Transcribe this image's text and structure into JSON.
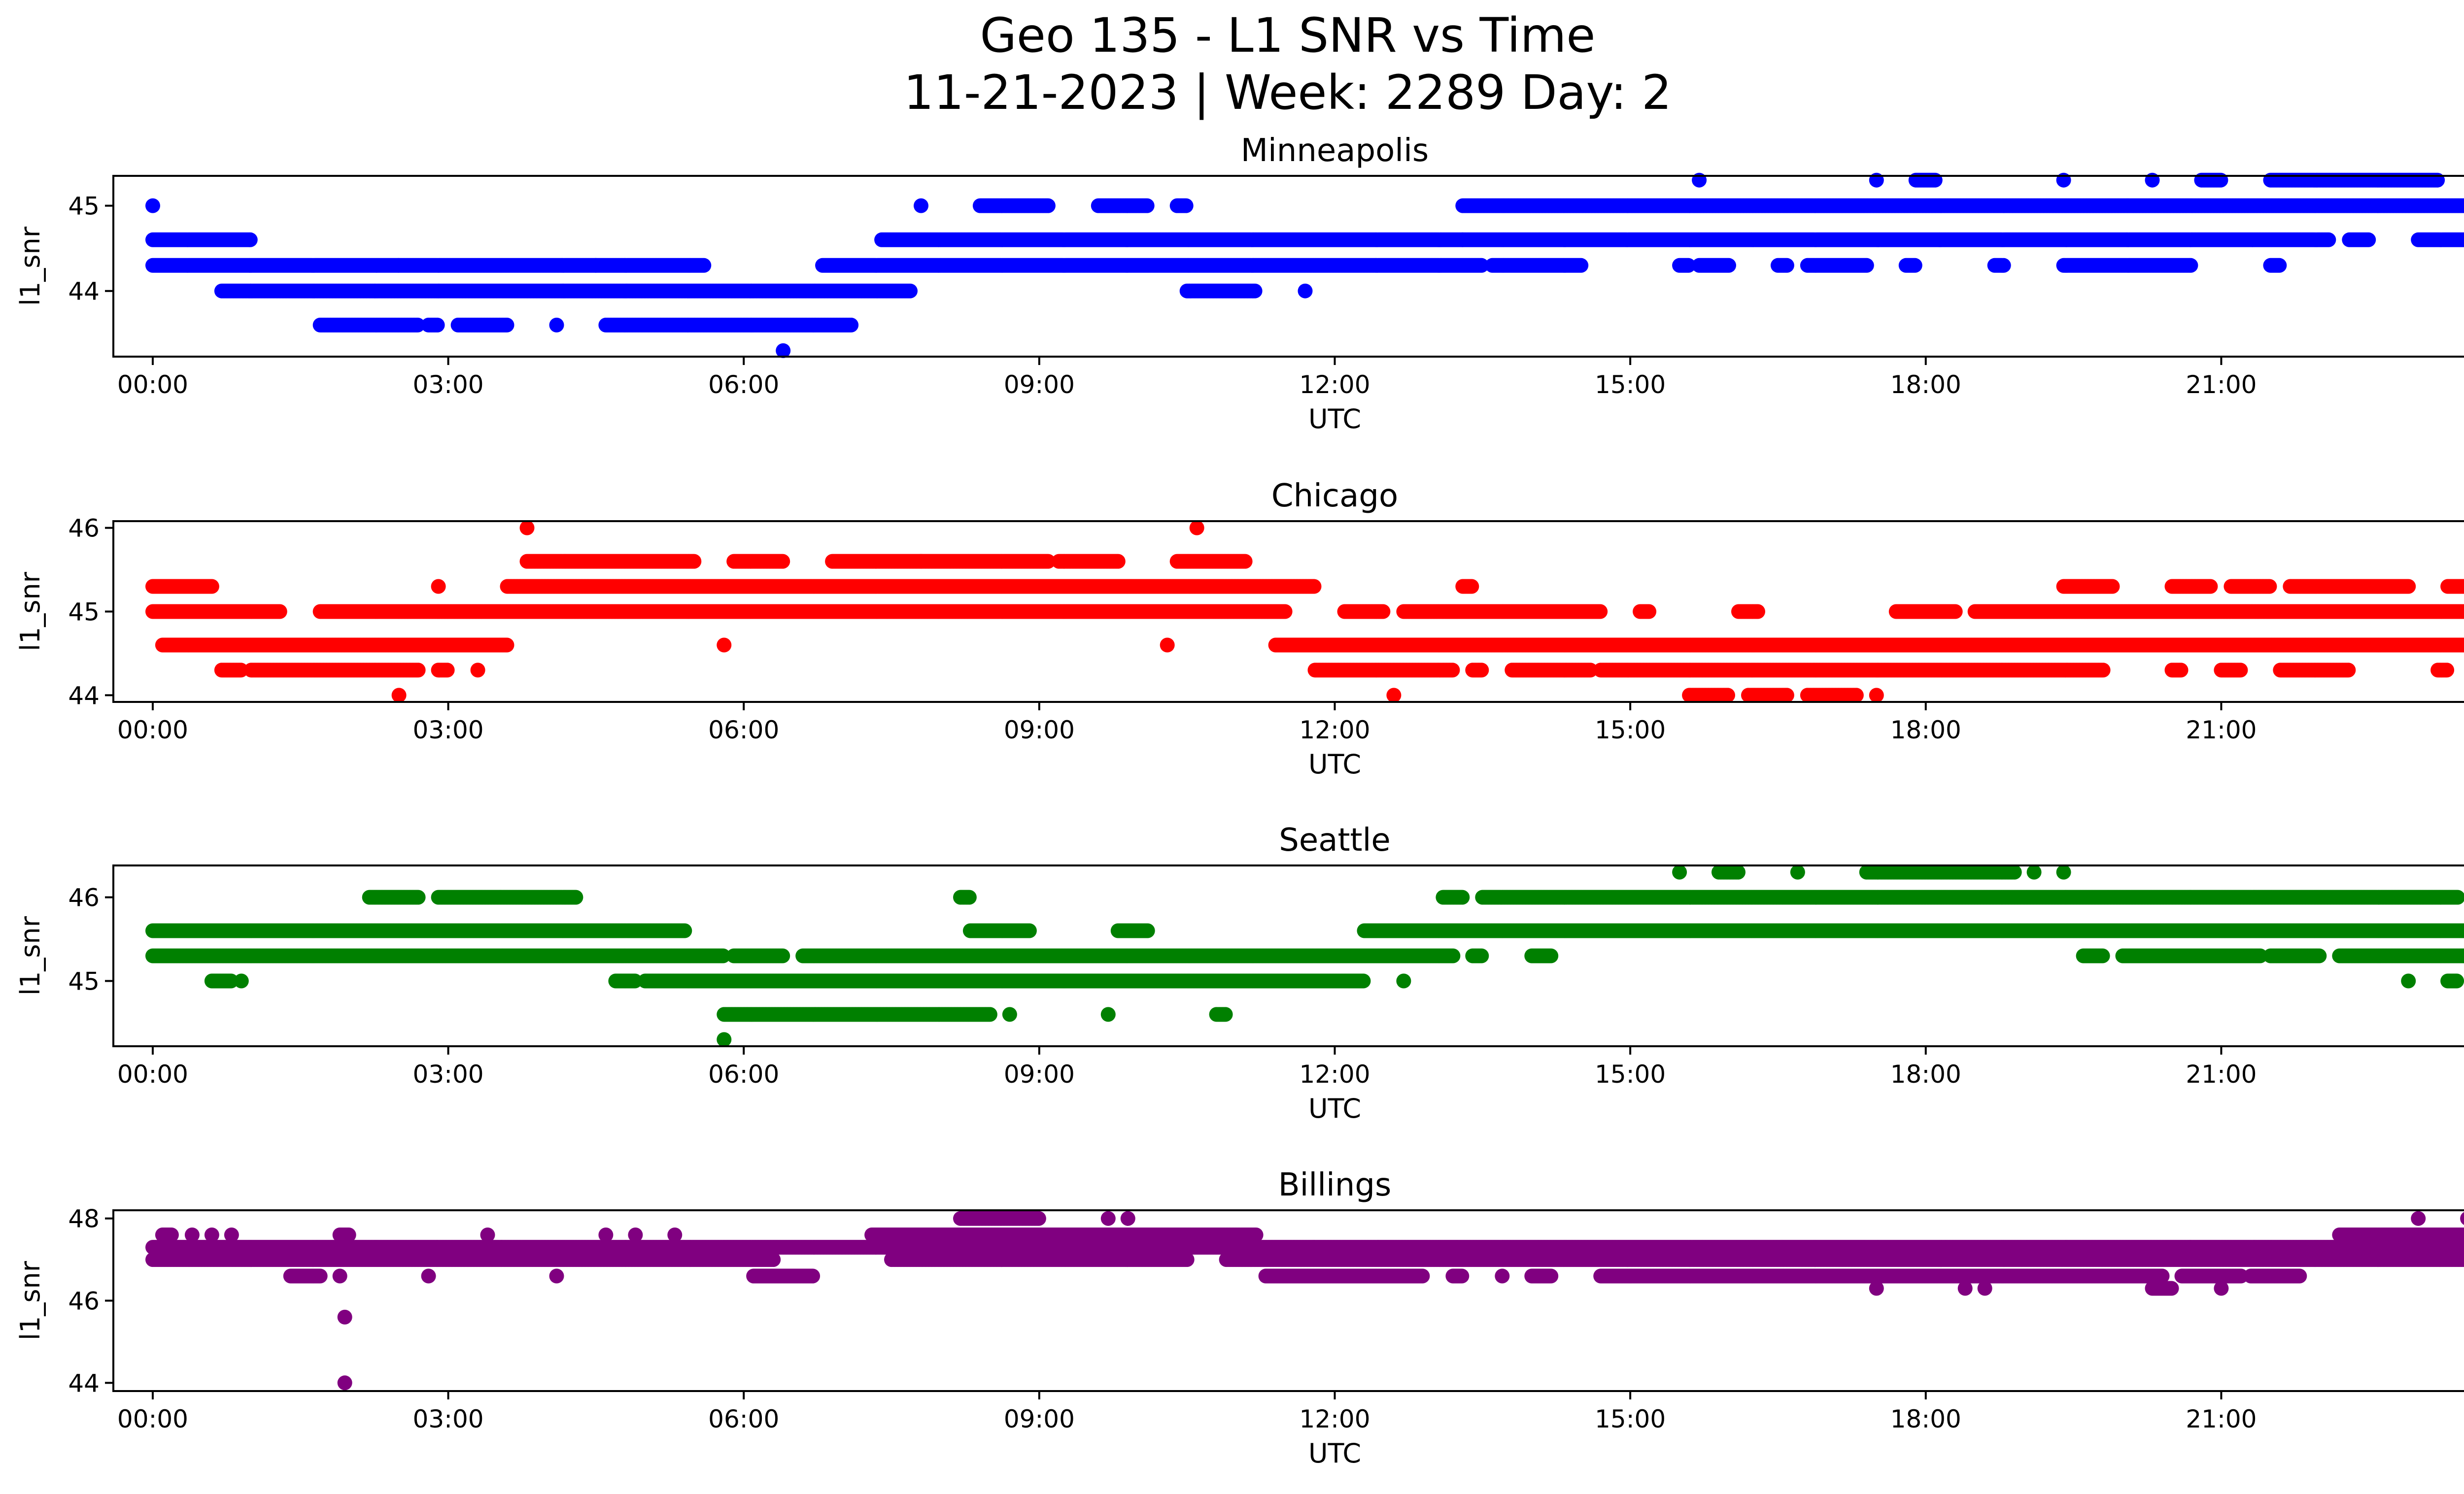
{
  "title": {
    "line1": "Geo 135 - L1 SNR vs Time",
    "line2": "11-21-2023 | Week: 2289 Day: 2"
  },
  "chart_data": [
    {
      "type": "scatter",
      "title": "Minneapolis",
      "xlabel": "UTC",
      "ylabel": "l1_snr",
      "color": "#0000ff",
      "xlim": [
        -0.4,
        24.4
      ],
      "ylim": [
        43.23,
        45.35
      ],
      "yticks": [
        44,
        45
      ],
      "xtick_labels": [
        "00:00",
        "03:00",
        "06:00",
        "09:00",
        "12:00",
        "15:00",
        "18:00",
        "21:00",
        "00:00"
      ],
      "grid": false,
      "levels": [
        {
          "value": 44.6,
          "ranges": [
            [
              0,
              1.0
            ],
            [
              7.4,
              13.3
            ],
            [
              13.3,
              22.1
            ],
            [
              22.3,
              22.5
            ],
            [
              23,
              24
            ]
          ]
        },
        {
          "value": 44.3,
          "ranges": [
            [
              0,
              2.5
            ],
            [
              2.5,
              4.5
            ],
            [
              4.5,
              5.6
            ],
            [
              6.8,
              13.5
            ],
            [
              13.6,
              14.5
            ],
            [
              15.5,
              15.6
            ],
            [
              15.7,
              16.0
            ],
            [
              16.5,
              16.6
            ],
            [
              16.8,
              17.4
            ],
            [
              17.8,
              17.9
            ],
            [
              18.7,
              18.8
            ],
            [
              19.4,
              20.7
            ],
            [
              21.5,
              21.6
            ],
            [
              23.9,
              24
            ]
          ]
        },
        {
          "value": 44.0,
          "ranges": [
            [
              0.7,
              7.7
            ],
            [
              10.5,
              11.2
            ],
            [
              11.7,
              11.7
            ]
          ]
        },
        {
          "value": 43.6,
          "ranges": [
            [
              1.7,
              2.7
            ],
            [
              2.8,
              2.9
            ],
            [
              3.1,
              3.6
            ],
            [
              4.1,
              4.1
            ],
            [
              4.6,
              7.1
            ]
          ]
        },
        {
          "value": 45.0,
          "ranges": [
            [
              0,
              0
            ],
            [
              7.8,
              7.8
            ],
            [
              8.4,
              9.1
            ],
            [
              9.6,
              10.1
            ],
            [
              10.4,
              10.5
            ],
            [
              13.3,
              24
            ]
          ]
        },
        {
          "value": 45.3,
          "ranges": [
            [
              15.7,
              15.7
            ],
            [
              17.5,
              17.5
            ],
            [
              17.9,
              18.1
            ],
            [
              19.4,
              19.4
            ],
            [
              20.3,
              20.3
            ],
            [
              20.8,
              21.0
            ],
            [
              21.5,
              23.2
            ]
          ]
        },
        {
          "value": 43.3,
          "ranges": [
            [
              6.4,
              6.4
            ]
          ]
        }
      ]
    },
    {
      "type": "scatter",
      "title": "Chicago",
      "xlabel": "UTC",
      "ylabel": "l1_snr",
      "color": "#ff0000",
      "xlim": [
        -0.4,
        24.4
      ],
      "ylim": [
        43.92,
        46.08
      ],
      "yticks": [
        44,
        45,
        46
      ],
      "xtick_labels": [
        "00:00",
        "03:00",
        "06:00",
        "09:00",
        "12:00",
        "15:00",
        "18:00",
        "21:00",
        "00:00"
      ],
      "grid": false,
      "levels": [
        {
          "value": 45.0,
          "ranges": [
            [
              0,
              1.3
            ],
            [
              1.7,
              2.9
            ],
            [
              2.9,
              11.5
            ],
            [
              12.1,
              12.5
            ],
            [
              12.7,
              14.7
            ],
            [
              15.1,
              15.2
            ],
            [
              16.1,
              16.3
            ],
            [
              17.7,
              18.3
            ],
            [
              18.5,
              24
            ]
          ]
        },
        {
          "value": 44.6,
          "ranges": [
            [
              0.1,
              3.6
            ],
            [
              5.8,
              5.8
            ],
            [
              10.3,
              10.3
            ],
            [
              11.4,
              24
            ]
          ]
        },
        {
          "value": 44.3,
          "ranges": [
            [
              0.7,
              0.9
            ],
            [
              1.0,
              2.7
            ],
            [
              2.9,
              3.0
            ],
            [
              3.3,
              3.3
            ],
            [
              11.8,
              13.2
            ],
            [
              13.4,
              13.5
            ],
            [
              13.8,
              14.6
            ],
            [
              14.7,
              19.8
            ],
            [
              20.5,
              20.6
            ],
            [
              21,
              21.2
            ],
            [
              21.6,
              22.3
            ],
            [
              23.2,
              23.3
            ],
            [
              23.9,
              24
            ]
          ]
        },
        {
          "value": 44.0,
          "ranges": [
            [
              2.5,
              2.5
            ],
            [
              12.6,
              12.6
            ],
            [
              15.6,
              16.0
            ],
            [
              16.2,
              16.6
            ],
            [
              16.8,
              17.3
            ],
            [
              17.5,
              17.5
            ]
          ]
        },
        {
          "value": 45.3,
          "ranges": [
            [
              0,
              0.6
            ],
            [
              2.9,
              2.9
            ],
            [
              3.6,
              11.8
            ],
            [
              13.3,
              13.4
            ],
            [
              19.4,
              19.9
            ],
            [
              20.5,
              20.9
            ],
            [
              21.1,
              21.5
            ],
            [
              21.7,
              22.9
            ],
            [
              23.3,
              23.5
            ]
          ]
        },
        {
          "value": 45.6,
          "ranges": [
            [
              3.8,
              5.5
            ],
            [
              5.9,
              6.4
            ],
            [
              6.9,
              7.8
            ],
            [
              7.8,
              9.1
            ],
            [
              9.2,
              9.8
            ],
            [
              10.4,
              11.1
            ]
          ]
        },
        {
          "value": 46.0,
          "ranges": [
            [
              3.8,
              3.8
            ],
            [
              10.6,
              10.6
            ]
          ]
        }
      ]
    },
    {
      "type": "scatter",
      "title": "Seattle",
      "xlabel": "UTC",
      "ylabel": "l1_snr",
      "color": "#008000",
      "xlim": [
        -0.4,
        24.4
      ],
      "ylim": [
        44.22,
        46.38
      ],
      "yticks": [
        45,
        46
      ],
      "xtick_labels": [
        "00:00",
        "03:00",
        "06:00",
        "09:00",
        "12:00",
        "15:00",
        "18:00",
        "21:00",
        "00:00"
      ],
      "grid": false,
      "levels": [
        {
          "value": 45.6,
          "ranges": [
            [
              0,
              5.4
            ],
            [
              8.3,
              8.9
            ],
            [
              9.8,
              10.1
            ],
            [
              12.3,
              24
            ]
          ]
        },
        {
          "value": 45.3,
          "ranges": [
            [
              0,
              5.8
            ],
            [
              5.9,
              6.4
            ],
            [
              6.6,
              13.2
            ],
            [
              13.4,
              13.5
            ],
            [
              14.0,
              14.2
            ],
            [
              19.6,
              19.8
            ],
            [
              20.0,
              21.4
            ],
            [
              21.5,
              22.0
            ],
            [
              22.2,
              24
            ]
          ]
        },
        {
          "value": 45.0,
          "ranges": [
            [
              0.6,
              0.8
            ],
            [
              0.9,
              0.9
            ],
            [
              4.7,
              4.9
            ],
            [
              5.0,
              12.3
            ],
            [
              12.7,
              12.7
            ],
            [
              22.9,
              22.9
            ],
            [
              23.3,
              23.4
            ],
            [
              23.6,
              24
            ]
          ]
        },
        {
          "value": 44.6,
          "ranges": [
            [
              5.8,
              8.5
            ],
            [
              8.7,
              8.7
            ],
            [
              9.7,
              9.7
            ],
            [
              10.8,
              10.9
            ]
          ]
        },
        {
          "value": 46.0,
          "ranges": [
            [
              2.2,
              2.7
            ],
            [
              2.9,
              4.3
            ],
            [
              8.2,
              8.3
            ],
            [
              13.1,
              13.3
            ],
            [
              13.5,
              23.4
            ]
          ]
        },
        {
          "value": 46.3,
          "ranges": [
            [
              15.5,
              15.5
            ],
            [
              15.9,
              16.1
            ],
            [
              16.7,
              16.7
            ],
            [
              17.4,
              18.9
            ],
            [
              19.1,
              19.1
            ],
            [
              19.4,
              19.4
            ]
          ]
        },
        {
          "value": 44.3,
          "ranges": [
            [
              5.8,
              5.8
            ]
          ]
        }
      ]
    },
    {
      "type": "scatter",
      "title": "Billings",
      "xlabel": "UTC",
      "ylabel": "l1_snr",
      "color": "#800080",
      "xlim": [
        -0.4,
        24.4
      ],
      "ylim": [
        43.8,
        48.2
      ],
      "yticks": [
        44,
        46,
        48
      ],
      "xtick_labels": [
        "00:00",
        "03:00",
        "06:00",
        "09:00",
        "12:00",
        "15:00",
        "18:00",
        "21:00",
        "00:00"
      ],
      "grid": false,
      "levels": [
        {
          "value": 47.3,
          "ranges": [
            [
              0,
              24
            ]
          ]
        },
        {
          "value": 47.0,
          "ranges": [
            [
              0,
              6.3
            ],
            [
              7.5,
              10.5
            ],
            [
              10.9,
              24
            ]
          ]
        },
        {
          "value": 47.6,
          "ranges": [
            [
              0.1,
              0.2
            ],
            [
              0.4,
              0.4
            ],
            [
              0.6,
              0.6
            ],
            [
              0.8,
              0.8
            ],
            [
              1.9,
              2.0
            ],
            [
              3.4,
              3.4
            ],
            [
              4.6,
              4.6
            ],
            [
              4.9,
              4.9
            ],
            [
              5.3,
              5.3
            ],
            [
              7.3,
              11.2
            ],
            [
              22.2,
              24
            ]
          ]
        },
        {
          "value": 46.6,
          "ranges": [
            [
              1.4,
              1.7
            ],
            [
              1.9,
              1.9
            ],
            [
              2.8,
              2.8
            ],
            [
              4.1,
              4.1
            ],
            [
              6.1,
              6.7
            ],
            [
              11.3,
              12.9
            ],
            [
              13.2,
              13.3
            ],
            [
              13.7,
              13.7
            ],
            [
              14,
              14.2
            ],
            [
              14.7,
              15
            ],
            [
              15.0,
              20.4
            ],
            [
              20.6,
              21.2
            ],
            [
              21.3,
              21.8
            ]
          ]
        },
        {
          "value": 46.3,
          "ranges": [
            [
              17.5,
              17.5
            ],
            [
              18.4,
              18.4
            ],
            [
              18.6,
              18.6
            ],
            [
              20.3,
              20.5
            ],
            [
              21.0,
              21.0
            ]
          ]
        },
        {
          "value": 48.0,
          "ranges": [
            [
              8.2,
              9.0
            ],
            [
              9.7,
              9.7
            ],
            [
              9.9,
              9.9
            ],
            [
              23.0,
              23.0
            ],
            [
              23.5,
              23.6
            ]
          ]
        },
        {
          "value": 45.6,
          "ranges": [
            [
              1.95,
              1.95
            ]
          ]
        },
        {
          "value": 44.0,
          "ranges": [
            [
              1.95,
              1.95
            ]
          ]
        }
      ]
    }
  ]
}
